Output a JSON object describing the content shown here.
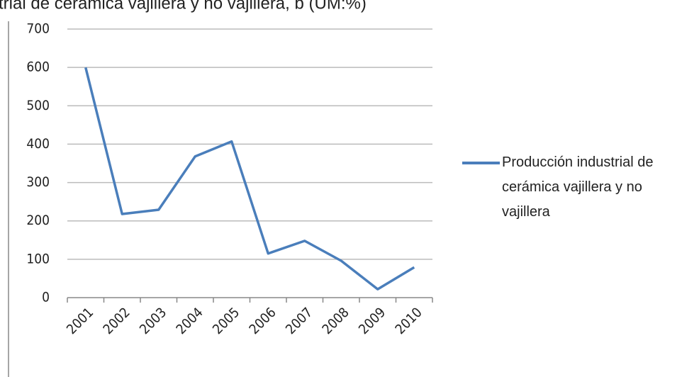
{
  "chart_data": {
    "type": "line",
    "title": "trial de cerámica vajillera  y no vajillera, b (UM:%)",
    "categories": [
      "2001",
      "2002",
      "2003",
      "2004",
      "2005",
      "2006",
      "2007",
      "2008",
      "2009",
      "2010"
    ],
    "series": [
      {
        "name": "Producción industrial de cerámica vajillera y no vajillera",
        "color": "#4a7ebb",
        "values": [
          600,
          218,
          229,
          368,
          407,
          115,
          148,
          96,
          22,
          79
        ]
      }
    ],
    "ylim": [
      0,
      700
    ],
    "yticks": [
      0,
      100,
      200,
      300,
      400,
      500,
      600,
      700
    ],
    "grid": true,
    "legend": "right"
  }
}
